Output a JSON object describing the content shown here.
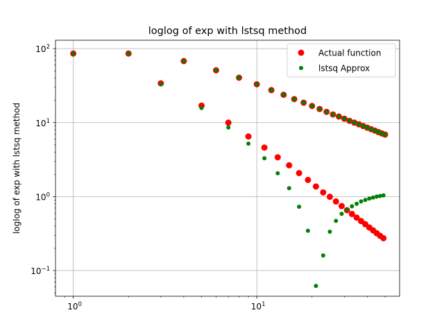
{
  "chart_data": {
    "type": "scatter",
    "title": "loglog of exp with lstsq method",
    "xlabel": "",
    "ylabel": "loglog of exp with lstsq method",
    "xscale": "log",
    "yscale": "log",
    "xlim": [
      0.8,
      60
    ],
    "ylim": [
      0.045,
      130
    ],
    "grid": true,
    "legend_position": "top-right",
    "x_tick_labels": [
      {
        "value": 1,
        "base": "10",
        "exp": "0"
      },
      {
        "value": 10,
        "base": "10",
        "exp": "1"
      }
    ],
    "y_tick_labels": [
      {
        "value": 0.1,
        "base": "10",
        "exp": "−1"
      },
      {
        "value": 1,
        "base": "10",
        "exp": "0"
      },
      {
        "value": 10,
        "base": "10",
        "exp": "1"
      },
      {
        "value": 100,
        "base": "10",
        "exp": "2"
      }
    ],
    "series": [
      {
        "name": "Actual function",
        "color": "#ff0000",
        "marker_size": "large",
        "x": [
          1,
          2,
          3,
          4,
          5,
          6,
          7,
          8,
          9,
          10,
          11,
          12,
          13,
          14,
          15,
          16,
          17,
          18,
          19,
          20,
          21,
          22,
          23,
          24,
          25,
          26,
          27,
          28,
          29,
          30,
          31,
          32,
          33,
          34,
          35,
          36,
          37,
          38,
          39,
          40,
          41,
          42,
          43,
          44,
          45,
          46,
          47,
          48,
          49,
          50
        ],
        "y": [
          86,
          86,
          34,
          68,
          17,
          51,
          10,
          40.5,
          6.5,
          33,
          4.6,
          27.5,
          3.4,
          23.8,
          2.65,
          20.8,
          2.08,
          18.6,
          1.68,
          16.8,
          1.37,
          15.3,
          1.14,
          14.0,
          0.995,
          12.9,
          0.86,
          12.1,
          0.745,
          11.3,
          0.655,
          10.6,
          0.582,
          10.0,
          0.52,
          9.5,
          0.467,
          9.0,
          0.424,
          8.55,
          0.383,
          8.15,
          0.35,
          7.8,
          0.32,
          7.45,
          0.295,
          7.15,
          0.274,
          6.9
        ]
      },
      {
        "name": "lstsq Approx",
        "color": "#008000",
        "marker_size": "small",
        "x": [
          1,
          2,
          3,
          4,
          5,
          6,
          7,
          8,
          9,
          10,
          11,
          12,
          13,
          14,
          15,
          16,
          17,
          18,
          19,
          20,
          21,
          22,
          23,
          24,
          25,
          26,
          27,
          28,
          29,
          30,
          31,
          32,
          33,
          34,
          35,
          36,
          37,
          38,
          39,
          40,
          41,
          42,
          43,
          44,
          45,
          46,
          47,
          48,
          49,
          50
        ],
        "y": [
          86,
          86,
          33,
          68,
          15.8,
          51,
          8.6,
          40.5,
          5.2,
          33,
          3.3,
          27.5,
          2.07,
          23.8,
          1.3,
          20.8,
          0.73,
          18.6,
          0.345,
          16.8,
          0.062,
          15.3,
          0.16,
          14.0,
          0.335,
          12.9,
          0.47,
          12.1,
          0.585,
          11.3,
          0.67,
          10.6,
          0.74,
          10.0,
          0.8,
          9.5,
          0.86,
          9.0,
          0.9,
          8.55,
          0.94,
          8.15,
          0.97,
          7.8,
          1.0,
          7.45,
          1.02,
          7.15,
          1.04,
          6.9
        ]
      }
    ]
  }
}
